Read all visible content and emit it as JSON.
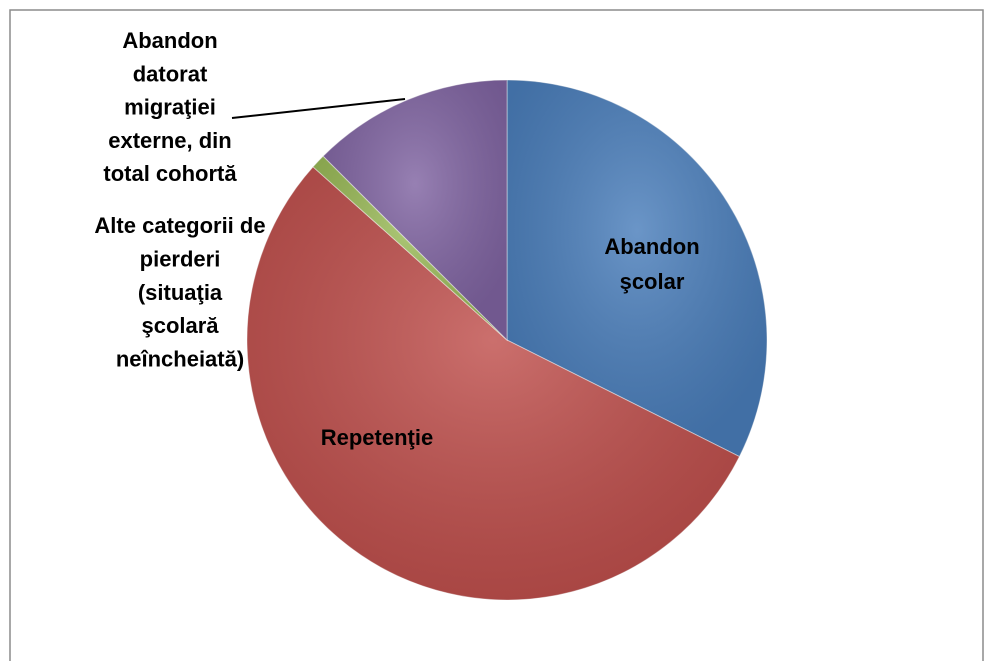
{
  "chart_data": {
    "type": "pie",
    "categories": [
      "Abandon şcolar",
      "Repetenţie",
      "Alte categorii de\npierderi\n(situaţia\nşcolară\nneîncheiată)",
      "Abandon\ndatorat\nmigraţiei\nexterne, din\ntotal cohortă"
    ],
    "values": [
      32.4,
      54.2,
      0.9,
      12.5
    ],
    "colors": [
      "#4a7ebb",
      "#c0504d",
      "#9bbb59",
      "#8064a2"
    ]
  }
}
